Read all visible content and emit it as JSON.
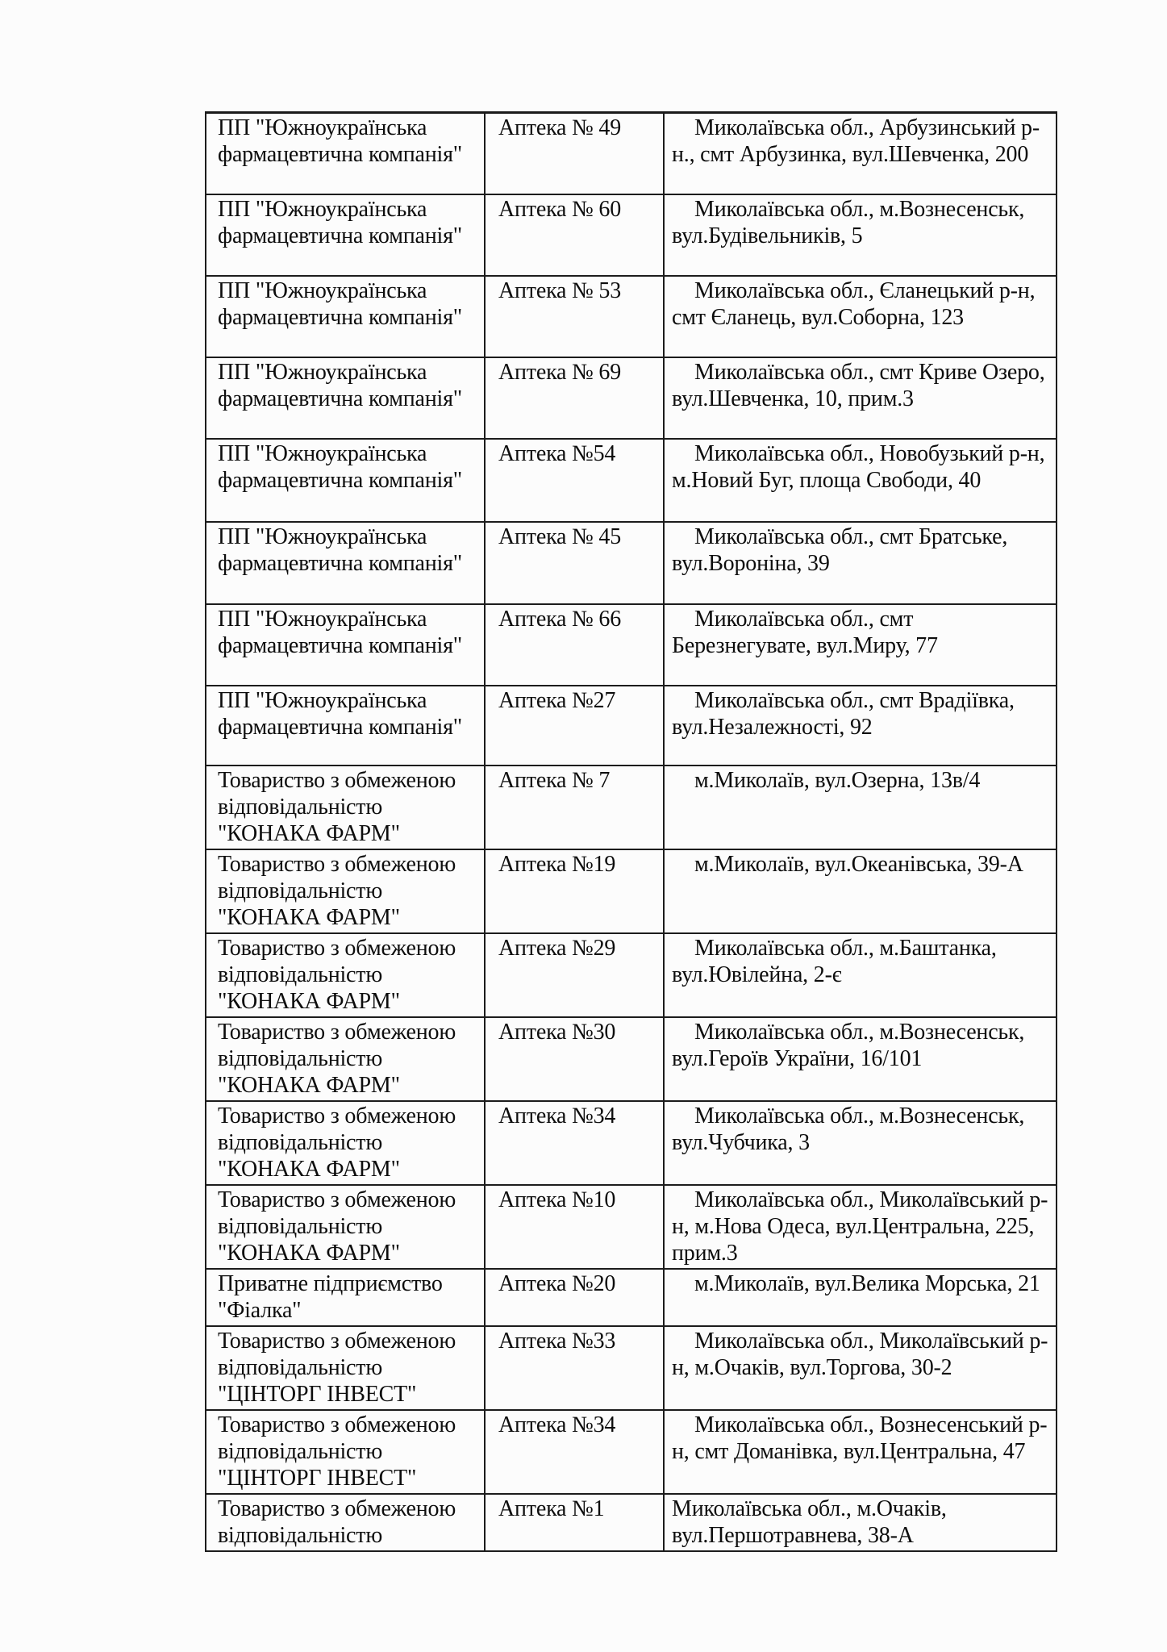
{
  "page": {
    "background_color": "#fcfcfc",
    "text_color": "#0d0d0d",
    "border_color": "#1c1c1c"
  },
  "table": {
    "columns": [
      "company",
      "pharmacy",
      "address"
    ],
    "rows": [
      {
        "company": "ПП \"Южноукраїнська фармацевтична компанія\"",
        "pharmacy": "Аптека № 49",
        "address": "Миколаївська обл., Арбузинський р-н., смт Арбузинка, вул.Шевченка, 200"
      },
      {
        "company": "ПП \"Южноукраїнська фармацевтична компанія\"",
        "pharmacy": "Аптека № 60",
        "address": "Миколаївська обл., м.Вознесенськ, вул.Будівельників, 5"
      },
      {
        "company": "ПП \"Южноукраїнська фармацевтична компанія\"",
        "pharmacy": "Аптека № 53",
        "address": "Миколаївська обл., Єланецький р-н, смт Єланець, вул.Соборна, 123"
      },
      {
        "company": "ПП \"Южноукраїнська фармацевтична компанія\"",
        "pharmacy": "Аптека № 69",
        "address": "Миколаївська обл., смт Криве Озеро, вул.Шевченка, 10, прим.3"
      },
      {
        "company": "ПП \"Южноукраїнська фармацевтична компанія\"",
        "pharmacy": "Аптека №54",
        "address": "Миколаївська обл., Новобузький р-н, м.Новий Буг, площа Свободи, 40"
      },
      {
        "company": "ПП \"Южноукраїнська фармацевтична компанія\"",
        "pharmacy": "Аптека № 45",
        "address": "Миколаївська обл., смт Братське, вул.Вороніна, 39"
      },
      {
        "company": "ПП \"Южноукраїнська фармацевтична компанія\"",
        "pharmacy": "Аптека № 66",
        "address": "Миколаївська обл., смт Березнегувате, вул.Миру, 77"
      },
      {
        "company": "ПП \"Южноукраїнська фармацевтична компанія\"",
        "pharmacy": "Аптека №27",
        "address": "Миколаївська обл., смт Врадіївка, вул.Незалежності, 92"
      },
      {
        "company": "Товариство з обмеженою відповідальністю \"КОНАКА ФАРМ\"",
        "pharmacy": "Аптека № 7",
        "address": "м.Миколаїв, вул.Озерна, 13в/4"
      },
      {
        "company": "Товариство з обмеженою відповідальністю \"КОНАКА ФАРМ\"",
        "pharmacy": "Аптека №19",
        "address": "м.Миколаїв, вул.Океанівська, 39-А"
      },
      {
        "company": "Товариство з обмеженою відповідальністю \"КОНАКА ФАРМ\"",
        "pharmacy": "Аптека №29",
        "address": "Миколаївська обл., м.Баштанка, вул.Ювілейна, 2-є"
      },
      {
        "company": "Товариство з обмеженою відповідальністю \"КОНАКА ФАРМ\"",
        "pharmacy": "Аптека №30",
        "address": "Миколаївська обл., м.Вознесенськ, вул.Героїв України, 16/101"
      },
      {
        "company": "Товариство з обмеженою відповідальністю \"КОНАКА ФАРМ\"",
        "pharmacy": "Аптека №34",
        "address": "Миколаївська обл., м.Вознесенськ, вул.Чубчика, 3"
      },
      {
        "company": "Товариство з обмеженою відповідальністю \"КОНАКА ФАРМ\"",
        "pharmacy": "Аптека №10",
        "address": "Миколаївська обл., Миколаївський р-н, м.Нова Одеса, вул.Центральна, 225, прим.3"
      },
      {
        "company": "Приватне підприємство \"Фіалка\"",
        "pharmacy": "Аптека №20",
        "address": "м.Миколаїв, вул.Велика Морська, 21"
      },
      {
        "company": "Товариство з обмеженою відповідальністю \"ЦІНТОРГ ІНВЕСТ\"",
        "pharmacy": "Аптека №33",
        "address": "Миколаївська обл., Миколаївський р-н, м.Очаків, вул.Торгова, 30-2"
      },
      {
        "company": "Товариство з обмеженою відповідальністю \"ЦІНТОРГ ІНВЕСТ\"",
        "pharmacy": "Аптека №34",
        "address": "Миколаївська обл., Вознесенський р-н, смт Доманівка, вул.Центральна, 47"
      },
      {
        "company": "Товариство з обмеженою відповідальністю",
        "pharmacy": "Аптека №1",
        "address": "Миколаївська обл., м.Очаків, вул.Першотравнева, 38-А"
      }
    ]
  }
}
